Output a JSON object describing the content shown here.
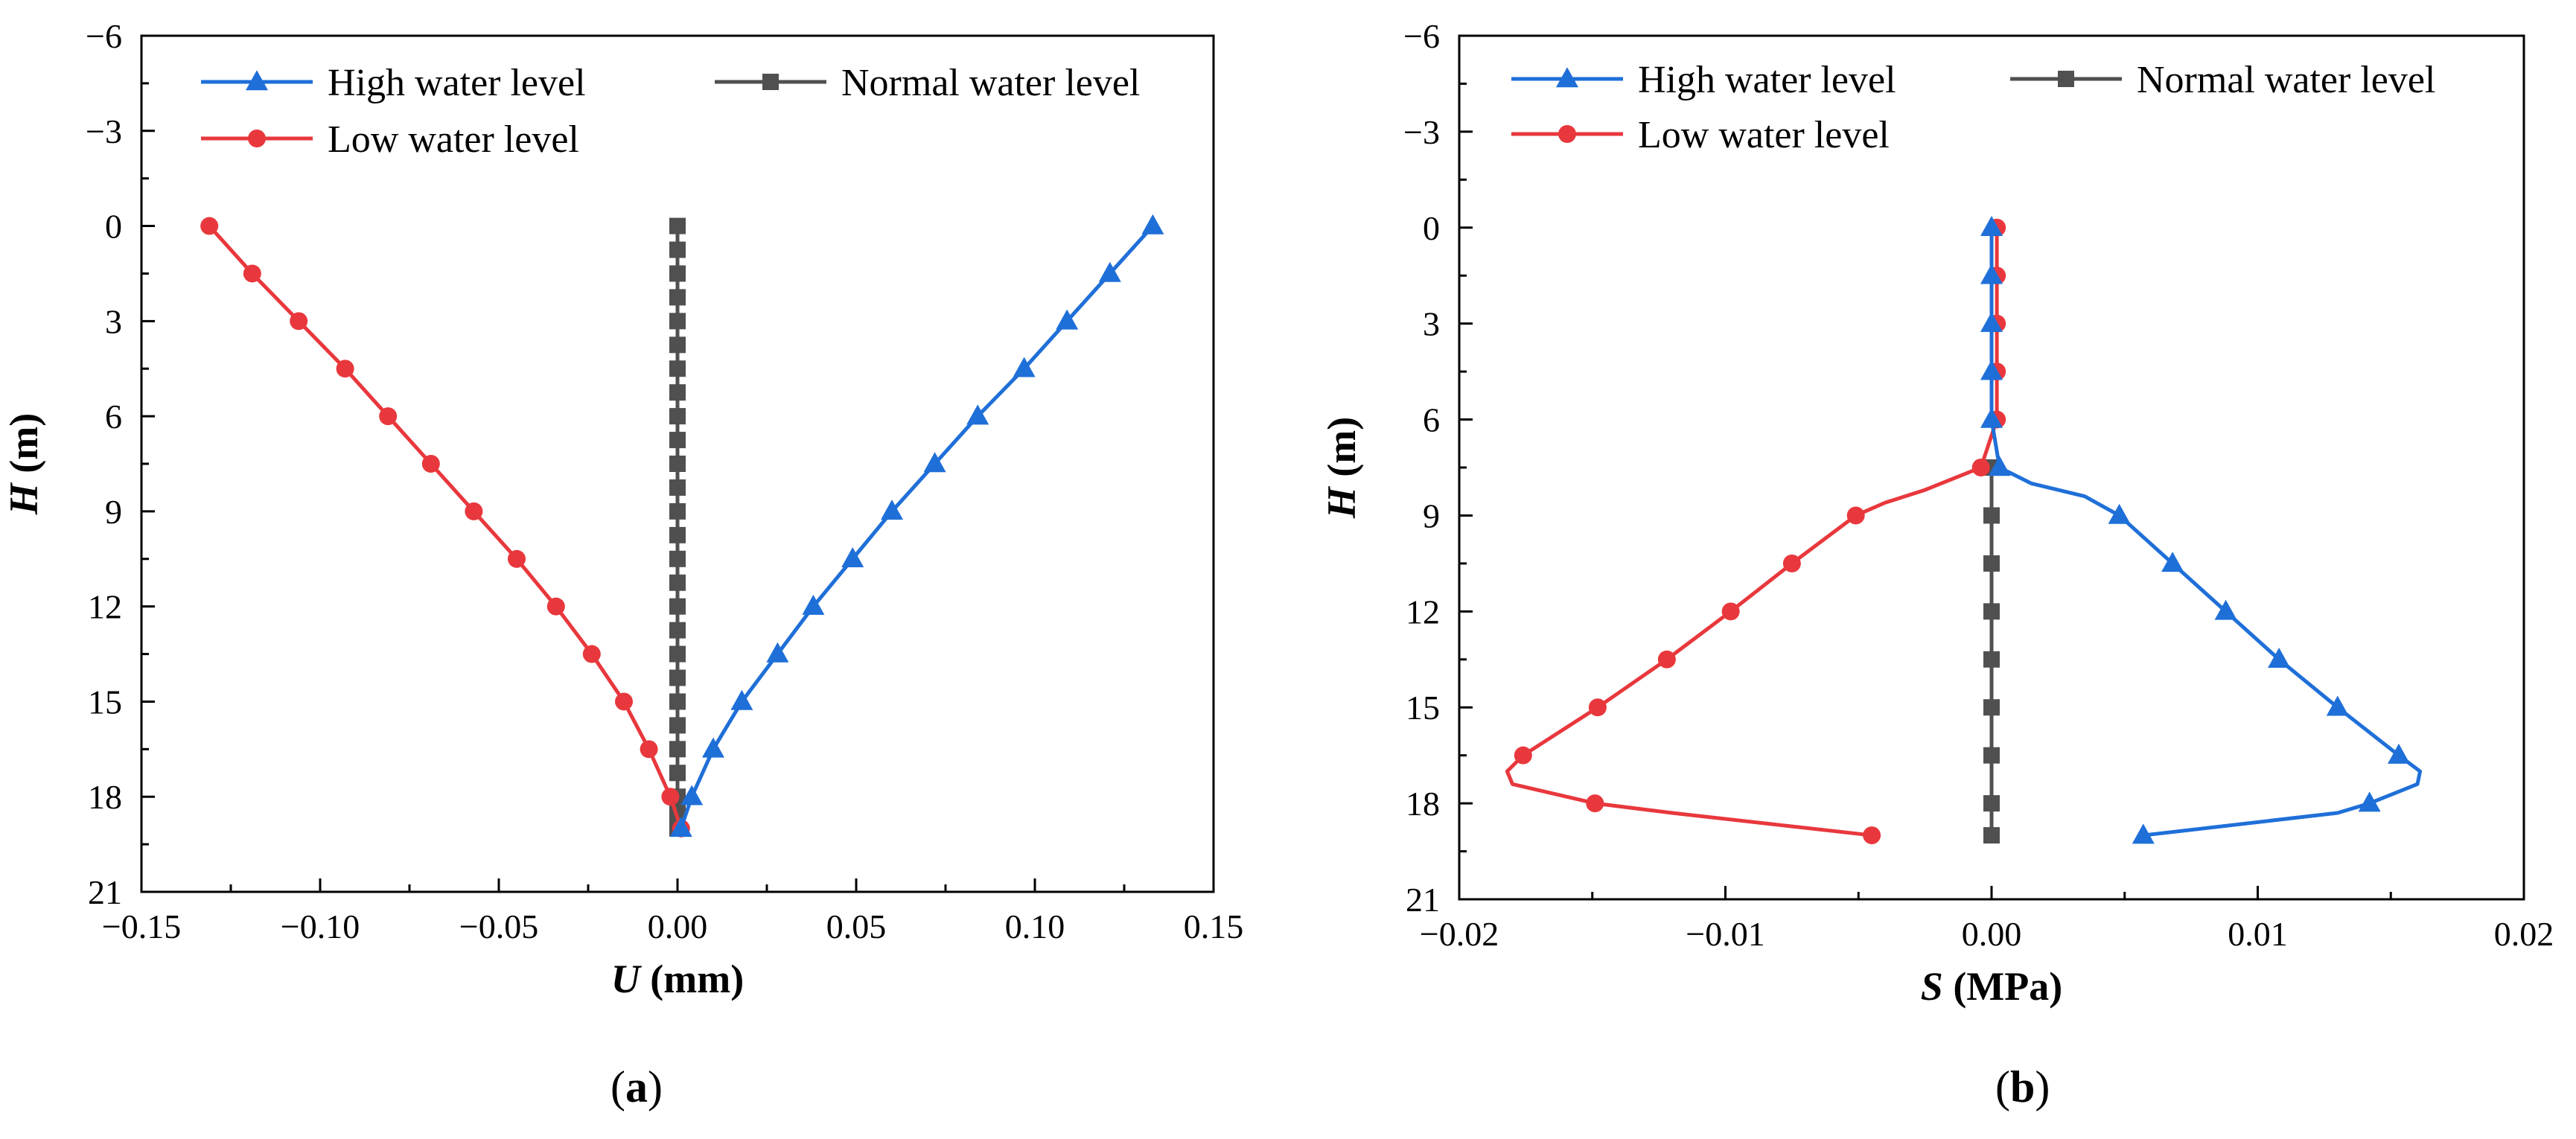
{
  "chart_data": [
    {
      "type": "line",
      "panel_label": "a",
      "xlabel_var": "U",
      "xlabel_unit": " (mm)",
      "ylabel_var": "H",
      "ylabel_unit": " (m)",
      "xlim": [
        -0.15,
        0.15
      ],
      "ylim": [
        -6,
        21
      ],
      "y_inverted": true,
      "x_ticks": [
        -0.15,
        -0.1,
        -0.05,
        0.0,
        0.05,
        0.1,
        0.15
      ],
      "x_tick_labels": [
        "−0.15",
        "−0.10",
        "−0.05",
        "0.00",
        "0.05",
        "0.10",
        "0.15"
      ],
      "y_ticks": [
        -6,
        -3,
        0,
        3,
        6,
        9,
        12,
        15,
        18,
        21
      ],
      "y_tick_labels": [
        "−6",
        "−3",
        "0",
        "3",
        "6",
        "9",
        "12",
        "15",
        "18",
        "21"
      ],
      "legend_position": "top",
      "series": [
        {
          "name": "High water level",
          "color": "#1f6fd8",
          "marker": "triangle",
          "points": [
            [
              0.133,
              0
            ],
            [
              0.121,
              1.5
            ],
            [
              0.109,
              3
            ],
            [
              0.097,
              4.5
            ],
            [
              0.084,
              6
            ],
            [
              0.072,
              7.5
            ],
            [
              0.06,
              9
            ],
            [
              0.049,
              10.5
            ],
            [
              0.038,
              12
            ],
            [
              0.028,
              13.5
            ],
            [
              0.018,
              15
            ],
            [
              0.01,
              16.5
            ],
            [
              0.004,
              18
            ],
            [
              0.001,
              19
            ]
          ],
          "line": [
            [
              0.133,
              0
            ],
            [
              0.121,
              1.5
            ],
            [
              0.109,
              3
            ],
            [
              0.097,
              4.5
            ],
            [
              0.084,
              6
            ],
            [
              0.072,
              7.5
            ],
            [
              0.06,
              9
            ],
            [
              0.049,
              10.5
            ],
            [
              0.038,
              12
            ],
            [
              0.028,
              13.5
            ],
            [
              0.018,
              15
            ],
            [
              0.01,
              16.5
            ],
            [
              0.004,
              18
            ],
            [
              0.001,
              19
            ]
          ]
        },
        {
          "name": "Normal water level",
          "color": "#505050",
          "marker": "square",
          "points": [
            [
              0,
              0
            ],
            [
              0,
              0.75
            ],
            [
              0,
              1.5
            ],
            [
              0,
              2.25
            ],
            [
              0,
              3
            ],
            [
              0,
              3.75
            ],
            [
              0,
              4.5
            ],
            [
              0,
              5.25
            ],
            [
              0,
              6
            ],
            [
              0,
              6.75
            ],
            [
              0,
              7.5
            ],
            [
              0,
              8.25
            ],
            [
              0,
              9
            ],
            [
              0,
              9.75
            ],
            [
              0,
              10.5
            ],
            [
              0,
              11.25
            ],
            [
              0,
              12
            ],
            [
              0,
              12.75
            ],
            [
              0,
              13.5
            ],
            [
              0,
              14.25
            ],
            [
              0,
              15
            ],
            [
              0,
              15.75
            ],
            [
              0,
              16.5
            ],
            [
              0,
              17.25
            ],
            [
              0,
              18
            ],
            [
              0,
              18.5
            ],
            [
              0,
              19
            ]
          ],
          "line": [
            [
              0,
              0
            ],
            [
              0,
              19
            ]
          ]
        },
        {
          "name": "Low water level",
          "color": "#e8383d",
          "marker": "circle",
          "points": [
            [
              -0.131,
              0
            ],
            [
              -0.119,
              1.5
            ],
            [
              -0.106,
              3
            ],
            [
              -0.093,
              4.5
            ],
            [
              -0.081,
              6
            ],
            [
              -0.069,
              7.5
            ],
            [
              -0.057,
              9
            ],
            [
              -0.045,
              10.5
            ],
            [
              -0.034,
              12
            ],
            [
              -0.024,
              13.5
            ],
            [
              -0.015,
              15
            ],
            [
              -0.008,
              16.5
            ],
            [
              -0.002,
              18
            ],
            [
              0.001,
              19
            ]
          ],
          "line": [
            [
              -0.131,
              0
            ],
            [
              -0.119,
              1.5
            ],
            [
              -0.106,
              3
            ],
            [
              -0.093,
              4.5
            ],
            [
              -0.081,
              6
            ],
            [
              -0.069,
              7.5
            ],
            [
              -0.057,
              9
            ],
            [
              -0.045,
              10.5
            ],
            [
              -0.034,
              12
            ],
            [
              -0.024,
              13.5
            ],
            [
              -0.015,
              15
            ],
            [
              -0.008,
              16.5
            ],
            [
              -0.002,
              18
            ],
            [
              0.001,
              19
            ]
          ]
        }
      ]
    },
    {
      "type": "line",
      "panel_label": "b",
      "xlabel_var": "S",
      "xlabel_unit": " (MPa)",
      "ylabel_var": "H",
      "ylabel_unit": " (m)",
      "xlim": [
        -0.02,
        0.02
      ],
      "ylim": [
        -6,
        21
      ],
      "y_inverted": true,
      "x_ticks": [
        -0.02,
        -0.01,
        0.0,
        0.01,
        0.02
      ],
      "x_tick_labels": [
        "−0.02",
        "−0.01",
        "0.00",
        "0.01",
        "0.02"
      ],
      "y_ticks": [
        -6,
        -3,
        0,
        3,
        6,
        9,
        12,
        15,
        18,
        21
      ],
      "y_tick_labels": [
        "−6",
        "−3",
        "0",
        "3",
        "6",
        "9",
        "12",
        "15",
        "18",
        "21"
      ],
      "legend_position": "top",
      "series": [
        {
          "name": "High water level",
          "color": "#1f6fd8",
          "marker": "triangle",
          "points": [
            [
              0,
              0
            ],
            [
              0,
              1.5
            ],
            [
              0,
              3
            ],
            [
              0,
              4.5
            ],
            [
              0,
              6
            ],
            [
              0.0003,
              7.5
            ],
            [
              0.0048,
              9
            ],
            [
              0.0068,
              10.5
            ],
            [
              0.0088,
              12
            ],
            [
              0.0108,
              13.5
            ],
            [
              0.013,
              15
            ],
            [
              0.0153,
              16.5
            ],
            [
              0.0142,
              18
            ],
            [
              0.0057,
              19
            ]
          ],
          "line": [
            [
              0,
              0
            ],
            [
              0,
              1.5
            ],
            [
              0,
              3
            ],
            [
              0,
              4.5
            ],
            [
              0,
              6
            ],
            [
              0.0003,
              7.5
            ],
            [
              0.0015,
              8.0
            ],
            [
              0.0035,
              8.4
            ],
            [
              0.0048,
              9
            ],
            [
              0.0068,
              10.5
            ],
            [
              0.0088,
              12
            ],
            [
              0.0108,
              13.5
            ],
            [
              0.013,
              15
            ],
            [
              0.0153,
              16.5
            ],
            [
              0.0161,
              17.0
            ],
            [
              0.016,
              17.4
            ],
            [
              0.0142,
              18
            ],
            [
              0.013,
              18.3
            ],
            [
              0.0057,
              19
            ]
          ]
        },
        {
          "name": "Normal water level",
          "color": "#505050",
          "marker": "square",
          "points": [
            [
              0,
              7.5
            ],
            [
              0,
              9
            ],
            [
              0,
              10.5
            ],
            [
              0,
              12
            ],
            [
              0,
              13.5
            ],
            [
              0,
              15
            ],
            [
              0,
              16.5
            ],
            [
              0,
              18
            ],
            [
              0,
              19
            ]
          ],
          "line": [
            [
              0,
              7.5
            ],
            [
              0,
              19
            ]
          ]
        },
        {
          "name": "Low water level",
          "color": "#e8383d",
          "marker": "circle",
          "points": [
            [
              0.0002,
              0
            ],
            [
              0.0002,
              1.5
            ],
            [
              0.0002,
              3
            ],
            [
              0.0002,
              4.5
            ],
            [
              0.0002,
              6
            ],
            [
              -0.0004,
              7.5
            ],
            [
              -0.0051,
              9
            ],
            [
              -0.0075,
              10.5
            ],
            [
              -0.0098,
              12
            ],
            [
              -0.0122,
              13.5
            ],
            [
              -0.0148,
              15
            ],
            [
              -0.0176,
              16.5
            ],
            [
              -0.0149,
              18
            ],
            [
              -0.0045,
              19
            ]
          ],
          "line": [
            [
              0.0002,
              0
            ],
            [
              0.0002,
              1.5
            ],
            [
              0.0002,
              3
            ],
            [
              0.0002,
              4.5
            ],
            [
              0.0002,
              6
            ],
            [
              -0.0004,
              7.5
            ],
            [
              -0.0025,
              8.2
            ],
            [
              -0.004,
              8.6
            ],
            [
              -0.0051,
              9
            ],
            [
              -0.0075,
              10.5
            ],
            [
              -0.0098,
              12
            ],
            [
              -0.0122,
              13.5
            ],
            [
              -0.0148,
              15
            ],
            [
              -0.0176,
              16.5
            ],
            [
              -0.0182,
              17.0
            ],
            [
              -0.018,
              17.4
            ],
            [
              -0.0149,
              18
            ],
            [
              -0.012,
              18.3
            ],
            [
              -0.0045,
              19
            ]
          ]
        }
      ]
    }
  ]
}
